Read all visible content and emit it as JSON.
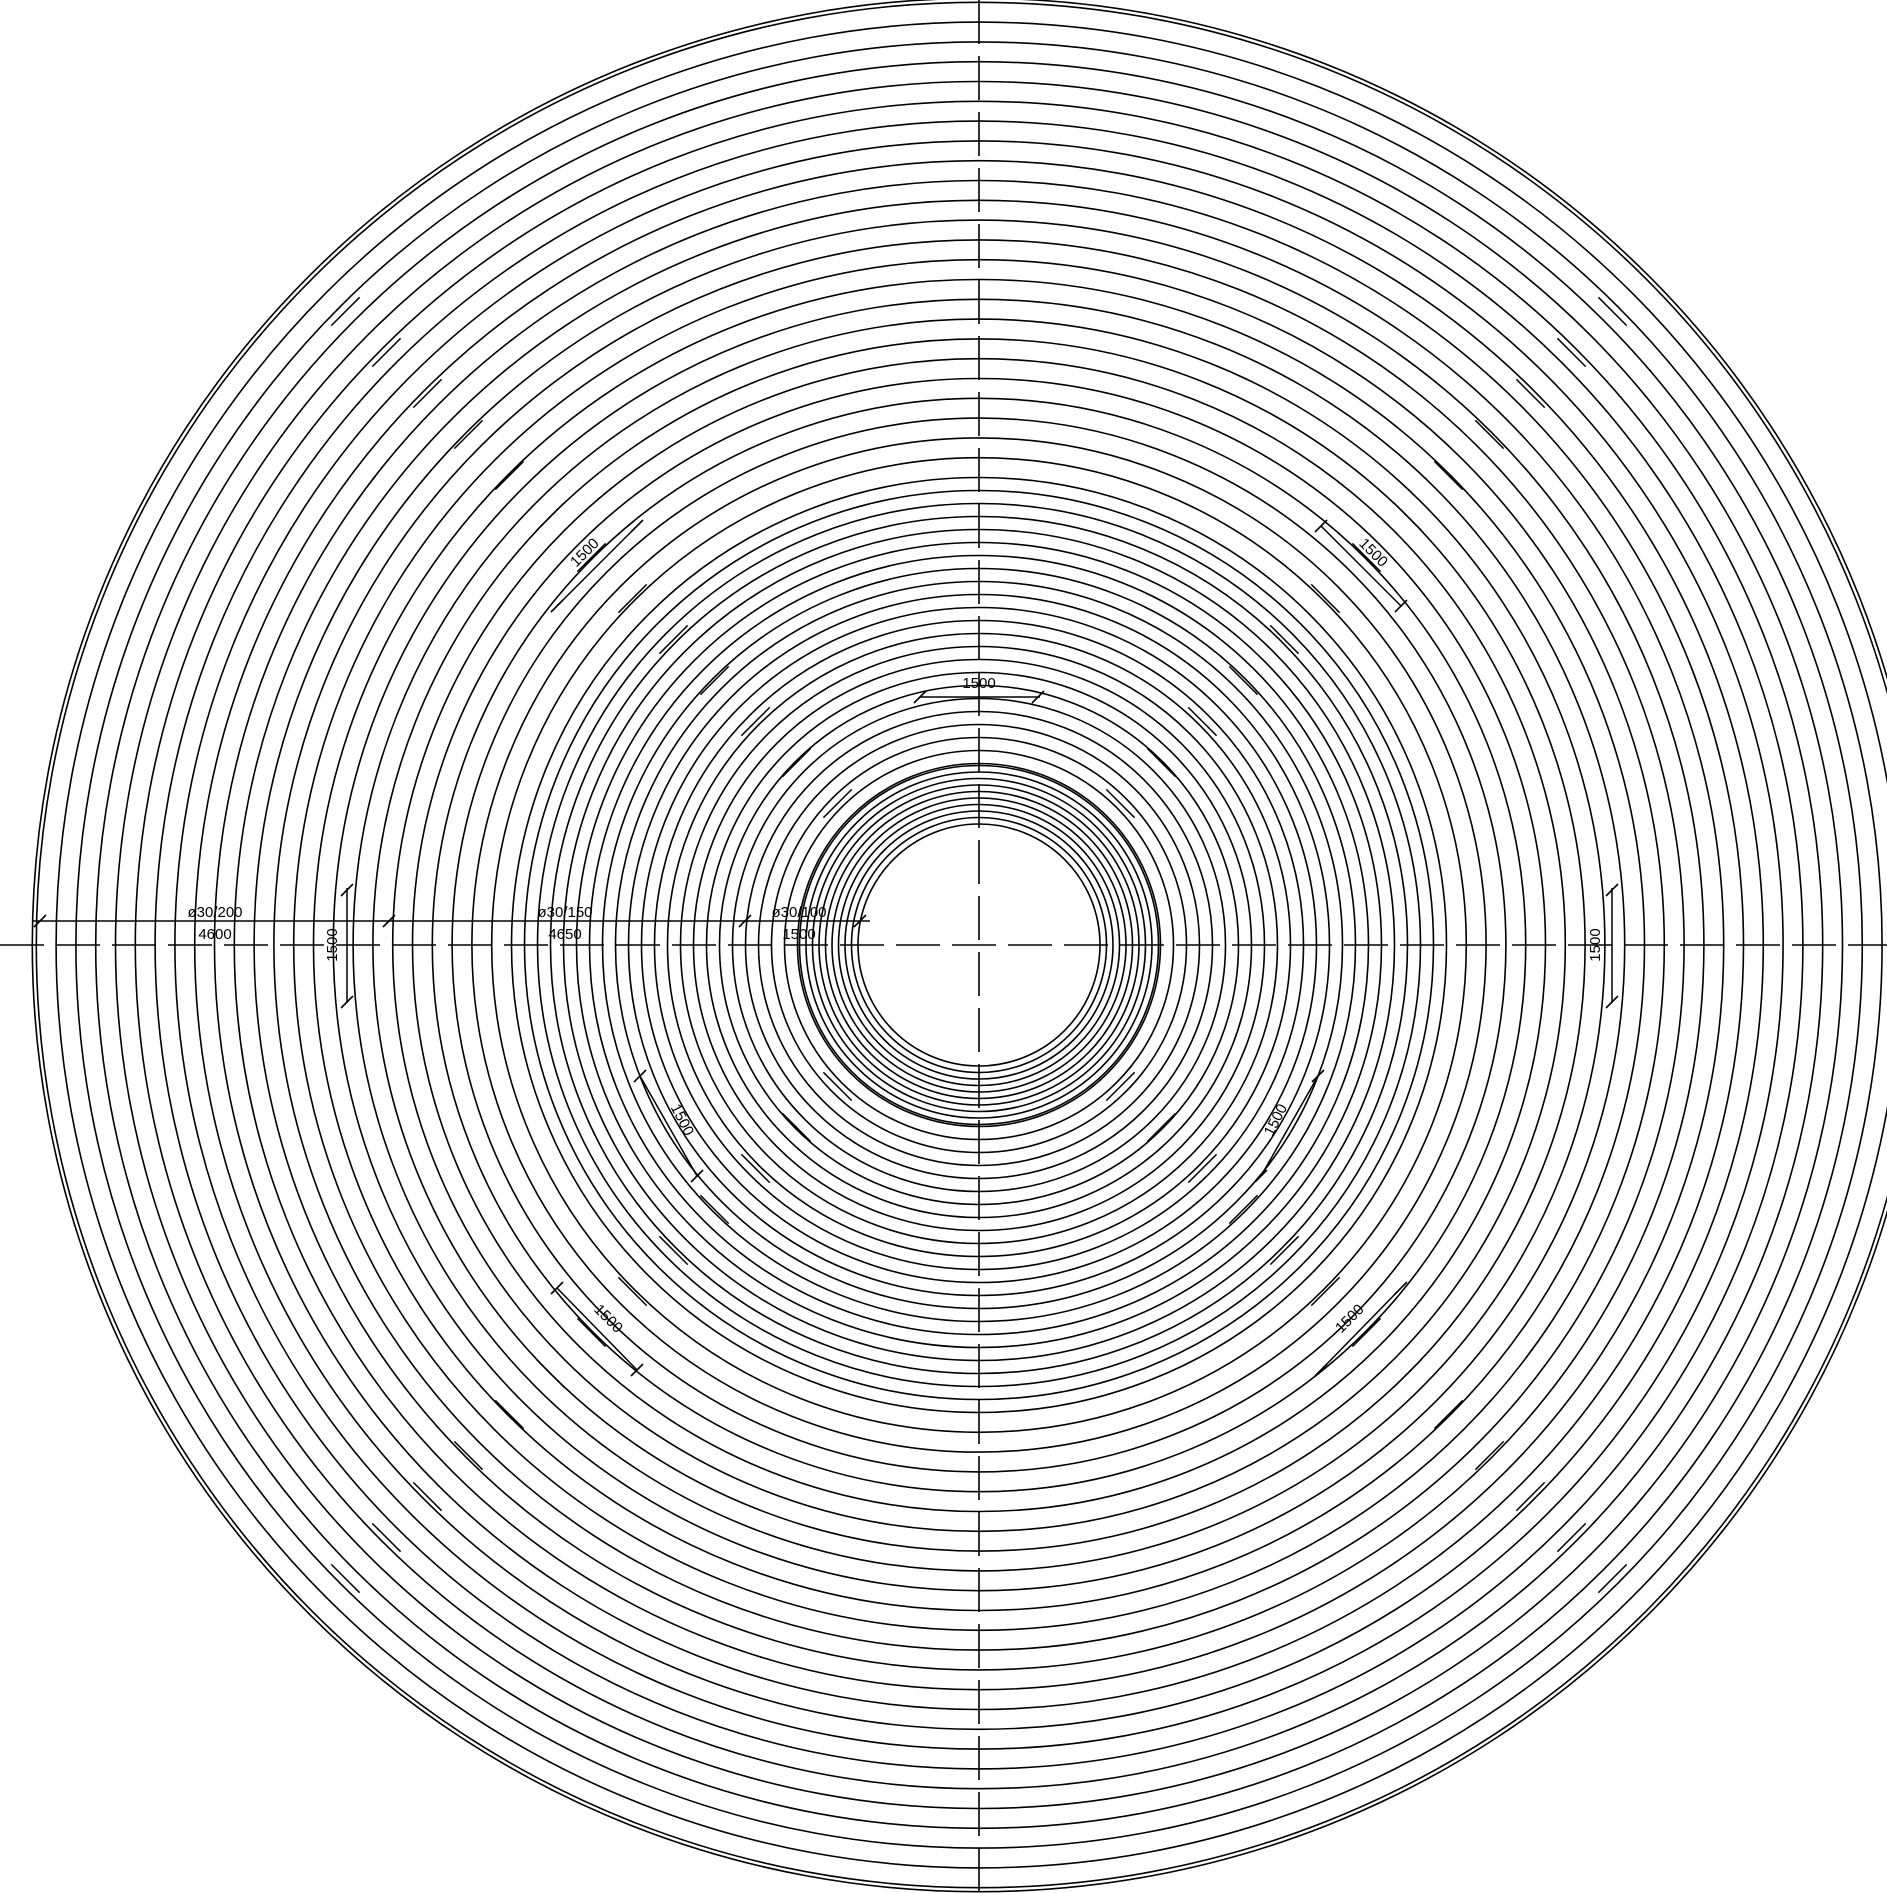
{
  "drawing": {
    "line_color": "#000000",
    "background": "#ffffff",
    "zones": [
      {
        "id": "outer",
        "bar_label": "ø30/200",
        "length_label": "4600"
      },
      {
        "id": "middle",
        "bar_label": "ø30/150",
        "length_label": "4650"
      },
      {
        "id": "inner",
        "bar_label": "ø30/100",
        "length_label": "1500"
      }
    ],
    "segment_dimensions": [
      {
        "id": "top",
        "label": "1500"
      },
      {
        "id": "upper-left",
        "label": "1500"
      },
      {
        "id": "upper-right",
        "label": "1500"
      },
      {
        "id": "left",
        "label": "1500"
      },
      {
        "id": "right",
        "label": "1500"
      },
      {
        "id": "lower-left-inner",
        "label": "1500"
      },
      {
        "id": "lower-right-inner",
        "label": "1500"
      },
      {
        "id": "lower-left-outer",
        "label": "1500"
      },
      {
        "id": "lower-right-outer",
        "label": "1500"
      }
    ]
  }
}
